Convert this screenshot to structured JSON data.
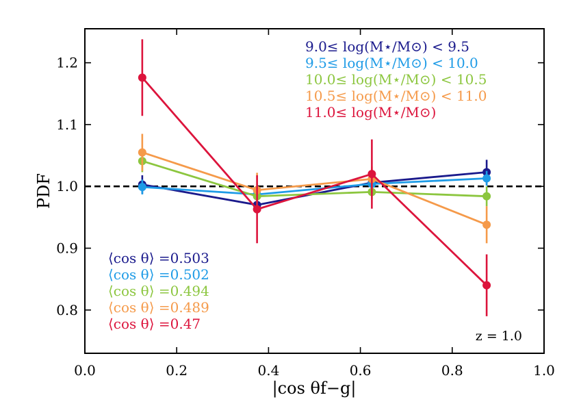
{
  "chart_data": {
    "type": "line",
    "xlabel": "|cos θf−g|",
    "ylabel": "PDF",
    "xlim": [
      0.0,
      1.0
    ],
    "ylim": [
      0.73,
      1.255
    ],
    "x_ticks": [
      0.0,
      0.2,
      0.4,
      0.6,
      0.8,
      1.0
    ],
    "x_tick_labels": [
      "0.0",
      "0.2",
      "0.4",
      "0.6",
      "0.8",
      "1.0"
    ],
    "y_ticks": [
      0.8,
      0.9,
      1.0,
      1.1,
      1.2
    ],
    "y_tick_labels": [
      "0.8",
      "0.9",
      "1.0",
      "1.1",
      "1.2"
    ],
    "reference_line": {
      "y": 1.0,
      "style": "dashed",
      "color": "#000000"
    },
    "x": [
      0.125,
      0.375,
      0.625,
      0.875
    ],
    "legend_position": "top-right",
    "series": [
      {
        "name": "9.0≤ log(M⋆/M⊙) < 9.5",
        "color": "#1a1a8c",
        "values": [
          1.003,
          0.97,
          1.006,
          1.023
        ],
        "errors": [
          0.015,
          0.012,
          0.012,
          0.02
        ]
      },
      {
        "name": "9.5≤ log(M⋆/M⊙) < 10.0",
        "color": "#1e9be6",
        "values": [
          0.999,
          0.987,
          1.004,
          1.013
        ],
        "errors": [
          0.012,
          0.01,
          0.01,
          0.012
        ]
      },
      {
        "name": "10.0≤ log(M⋆/M⊙) < 10.5",
        "color": "#8cc63f",
        "values": [
          1.041,
          0.984,
          0.991,
          0.984
        ],
        "errors": [
          0.018,
          0.012,
          0.012,
          0.016
        ]
      },
      {
        "name": "10.5≤ log(M⋆/M⊙) < 11.0",
        "color": "#f59a4a",
        "values": [
          1.055,
          0.994,
          1.012,
          0.938
        ],
        "errors": [
          0.03,
          0.028,
          0.02,
          0.03
        ]
      },
      {
        "name": "11.0≤ log(M⋆/M⊙)",
        "color": "#dc143c",
        "values": [
          1.176,
          0.963,
          1.02,
          0.84
        ],
        "errors": [
          0.062,
          0.055,
          0.056,
          0.05
        ]
      }
    ],
    "mean_cos_labels": [
      {
        "text": "⟨cos θ⟩ =0.503",
        "color": "#1a1a8c"
      },
      {
        "text": "⟨cos θ⟩ =0.502",
        "color": "#1e9be6"
      },
      {
        "text": "⟨cos θ⟩ =0.494",
        "color": "#8cc63f"
      },
      {
        "text": "⟨cos θ⟩ =0.489",
        "color": "#f59a4a"
      },
      {
        "text": "⟨cos θ⟩ =0.47",
        "color": "#dc143c"
      }
    ],
    "annotation": "z = 1.0"
  }
}
